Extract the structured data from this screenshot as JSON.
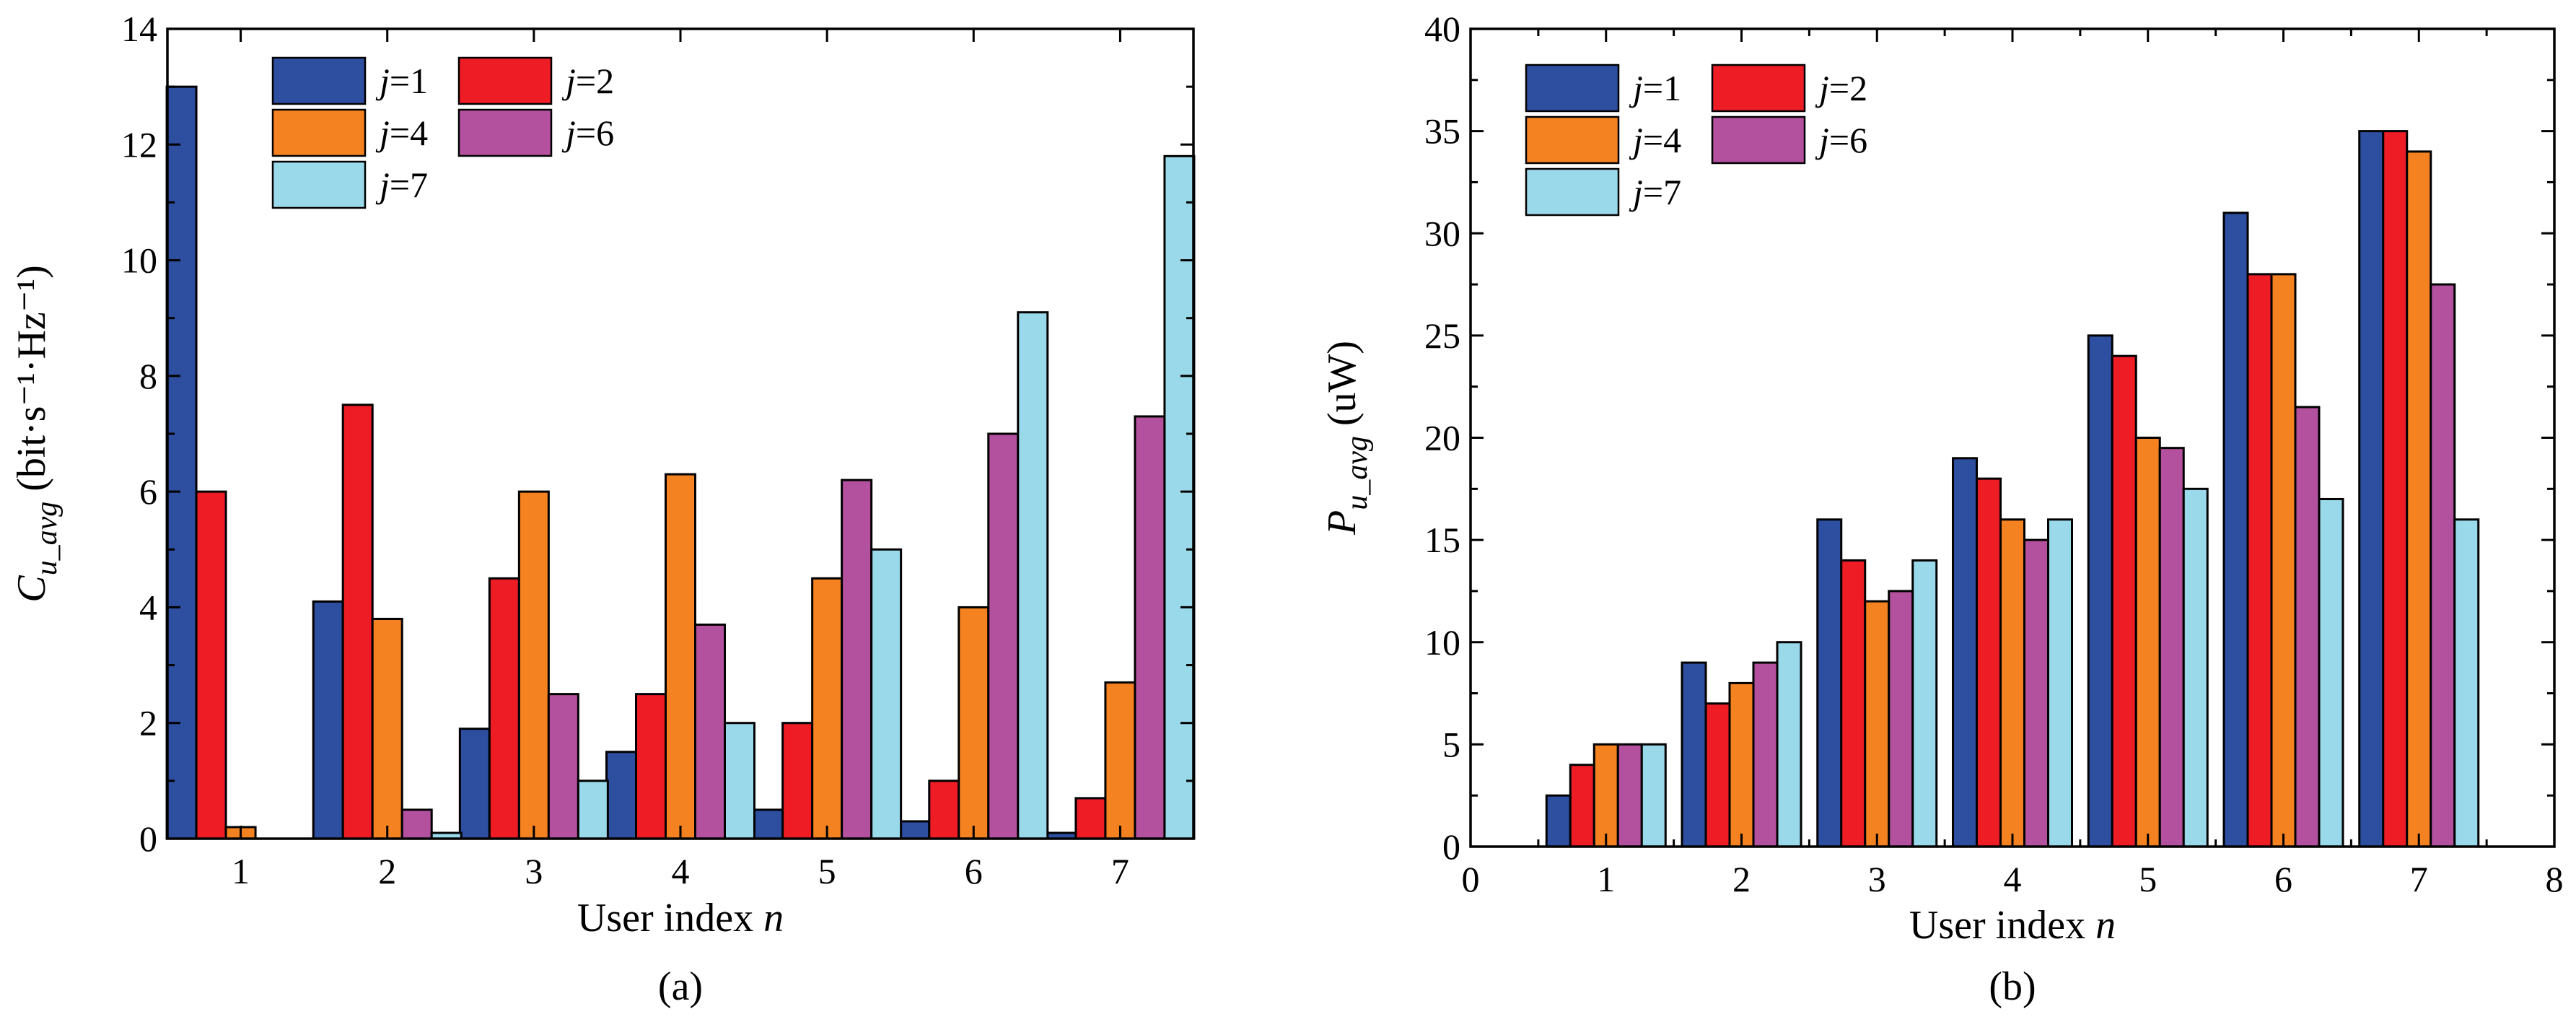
{
  "chart_data": [
    {
      "type": "bar",
      "id": "a",
      "caption": "(a)",
      "xlabel": "User index",
      "xlabel_var": "n",
      "ylabel_var": "C",
      "ylabel_sub": "u_avg",
      "ylabel_unit": "(bit·s⁻¹·Hz⁻¹)",
      "categories": [
        "1",
        "2",
        "3",
        "4",
        "5",
        "6",
        "7"
      ],
      "ylim": [
        0,
        14
      ],
      "yticks": [
        0,
        2,
        4,
        6,
        8,
        10,
        12,
        14
      ],
      "series": [
        {
          "name": "j=1",
          "color": "#2E4EA0",
          "values": [
            13,
            4.1,
            1.9,
            1.5,
            0.5,
            0.3,
            0.1
          ]
        },
        {
          "name": "j=2",
          "color": "#EE1C25",
          "values": [
            6,
            7.5,
            4.5,
            2.5,
            2,
            1,
            0.7
          ]
        },
        {
          "name": "j=4",
          "color": "#F58220",
          "values": [
            0.2,
            3.8,
            6,
            6.3,
            4.5,
            4,
            2.7
          ]
        },
        {
          "name": "j=6",
          "color": "#B4519F",
          "values": [
            0,
            0.5,
            2.5,
            3.7,
            6.2,
            7,
            7.3
          ]
        },
        {
          "name": "j=7",
          "color": "#9AD9EA",
          "values": [
            0,
            0.1,
            1,
            2,
            5,
            9.1,
            11.8
          ]
        }
      ]
    },
    {
      "type": "bar",
      "id": "b",
      "caption": "(b)",
      "xlabel": "User index",
      "xlabel_var": "n",
      "ylabel_var": "P",
      "ylabel_sub": "u_avg",
      "ylabel_unit": "(uW)",
      "categories": [
        "1",
        "2",
        "3",
        "4",
        "5",
        "6",
        "7"
      ],
      "xlim": [
        0,
        8
      ],
      "xticks": [
        0,
        1,
        2,
        3,
        4,
        5,
        6,
        7,
        8
      ],
      "ylim": [
        0,
        40
      ],
      "yticks": [
        0,
        5,
        10,
        15,
        20,
        25,
        30,
        35,
        40
      ],
      "series": [
        {
          "name": "j=1",
          "color": "#2E4EA0",
          "values": [
            2.5,
            9,
            16,
            19,
            25,
            31,
            35
          ]
        },
        {
          "name": "j=2",
          "color": "#EE1C25",
          "values": [
            4,
            7,
            14,
            18,
            24,
            28,
            35
          ]
        },
        {
          "name": "j=4",
          "color": "#F58220",
          "values": [
            5,
            8,
            12,
            16,
            20,
            28,
            34
          ]
        },
        {
          "name": "j=6",
          "color": "#B4519F",
          "values": [
            5,
            9,
            12.5,
            15,
            19.5,
            21.5,
            27.5
          ]
        },
        {
          "name": "j=7",
          "color": "#9AD9EA",
          "values": [
            5,
            10,
            14,
            16,
            17.5,
            17,
            16
          ]
        }
      ]
    }
  ]
}
